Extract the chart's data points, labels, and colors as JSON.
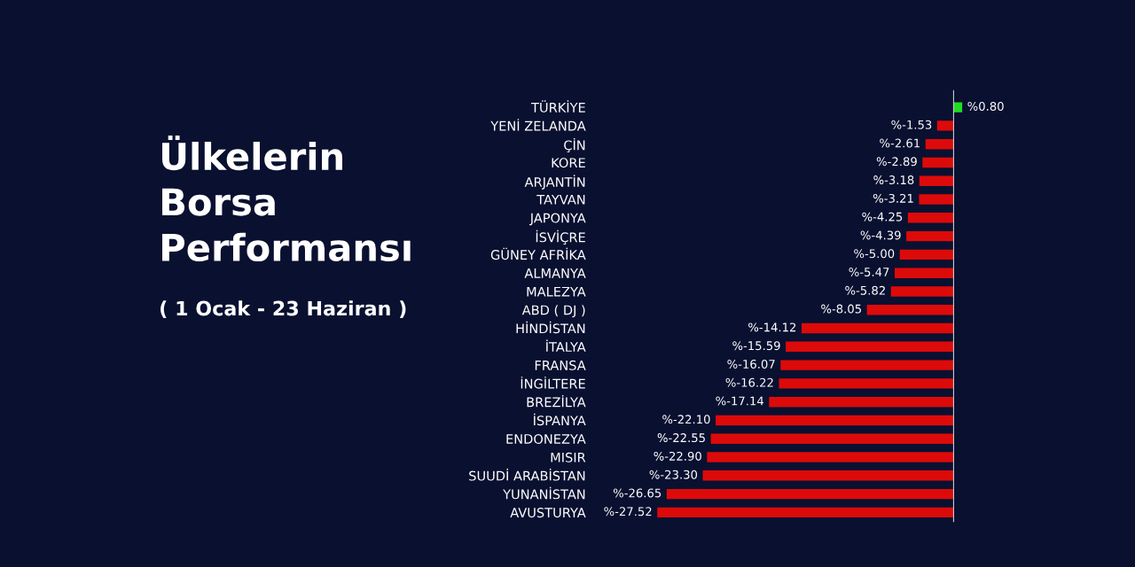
{
  "chart_data": {
    "type": "bar",
    "orientation": "horizontal",
    "title": "Ülkelerin\nBorsa\nPerformansı",
    "subtitle": "( 1 Ocak - 23 Haziran )",
    "categories": [
      "TÜRKİYE",
      "YENİ ZELANDA",
      "ÇİN",
      "KORE",
      "ARJANTİN",
      "TAYVAN",
      "JAPONYA",
      "İSVİÇRE",
      "GÜNEY AFRİKA",
      "ALMANYA",
      "MALEZYA",
      "ABD ( DJ )",
      "HİNDİSTAN",
      "İTALYA",
      "FRANSA",
      "İNGİLTERE",
      "BREZİLYA",
      "İSPANYA",
      "ENDONEZYA",
      "MISIR",
      "SUUDİ ARABİSTAN",
      "YUNANİSTAN",
      "AVUSTURYA"
    ],
    "values": [
      0.8,
      -1.53,
      -2.61,
      -2.89,
      -3.18,
      -3.21,
      -4.25,
      -4.39,
      -5.0,
      -5.47,
      -5.82,
      -8.05,
      -14.12,
      -15.59,
      -16.07,
      -16.22,
      -17.14,
      -22.1,
      -22.55,
      -22.9,
      -23.3,
      -26.65,
      -27.52
    ],
    "colors": [
      "#22dd22",
      "#dd0a0a",
      "#dd0a0a",
      "#dd0a0a",
      "#dd0a0a",
      "#dd0a0a",
      "#dd0a0a",
      "#dd0a0a",
      "#dd0a0a",
      "#dd0a0a",
      "#dd0a0a",
      "#dd0a0a",
      "#dd0a0a",
      "#dd0a0a",
      "#dd0a0a",
      "#dd0a0a",
      "#dd0a0a",
      "#dd0a0a",
      "#dd0a0a",
      "#dd0a0a",
      "#dd0a0a",
      "#dd0a0a",
      "#dd0a0a"
    ],
    "value_labels": [
      "%0.80",
      "%-1.53",
      "%-2.61",
      "%-2.89",
      "%-3.18",
      "%-3.21",
      "%-4.25",
      "%-4.39",
      "%-5.00",
      "%-5.47",
      "%-5.82",
      "%-8.05",
      "%-14.12",
      "%-15.59",
      "%-16.07",
      "%-16.22",
      "%-17.14",
      "%-22.10",
      "%-22.55",
      "%-22.90",
      "%-23.30",
      "%-26.65",
      "%-27.52"
    ],
    "tick_labels": "y",
    "grid": false,
    "legend": false
  }
}
